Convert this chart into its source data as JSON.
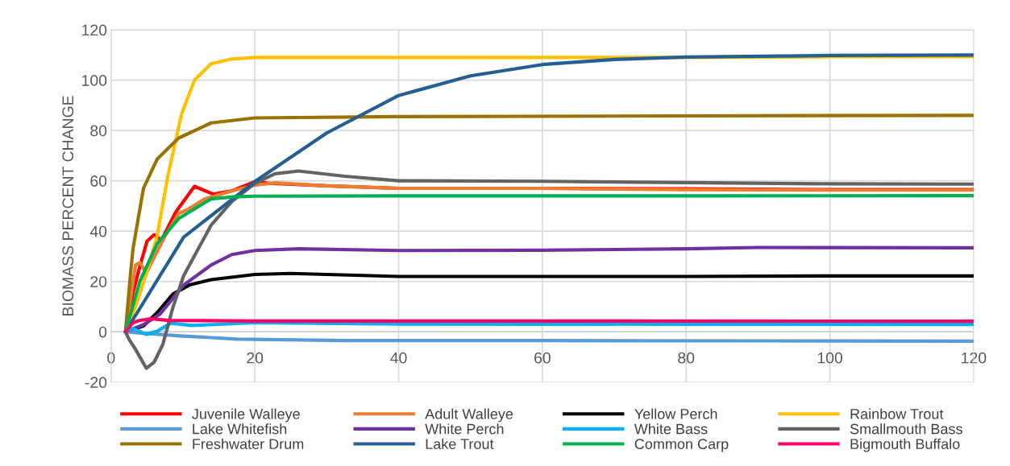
{
  "chart_data": {
    "type": "line",
    "ylabel": "BIOMASS PERCENT CHANGE",
    "xlim": [
      0,
      120
    ],
    "xticks": [
      0,
      20,
      40,
      60,
      80,
      100,
      120
    ],
    "ylim": [
      -20,
      120
    ],
    "yticks": [
      -20,
      0,
      20,
      40,
      60,
      80,
      100,
      120
    ],
    "grid": true,
    "legend": "bottom",
    "marker": "none",
    "line_style": "solid",
    "series": [
      {
        "name": "Juvenile Walleye",
        "color": "#ff0000",
        "x": [
          2,
          3,
          4,
          5,
          6,
          7,
          9,
          11.6,
          14.2,
          16.8,
          20,
          22,
          30,
          40,
          60,
          80,
          100,
          120
        ],
        "values": [
          0,
          15,
          26,
          36,
          38.6,
          36.5,
          47.6,
          57.8,
          54.7,
          56,
          59.7,
          59,
          58,
          57,
          57,
          56.8,
          56.5,
          56.5
        ]
      },
      {
        "name": "Adult Walleye",
        "color": "#ed7d31",
        "x": [
          2,
          3.4,
          4,
          4.9,
          7.5,
          9.4,
          10.9,
          13,
          16.8,
          20,
          22.8,
          30,
          40,
          60,
          80,
          100,
          120
        ],
        "values": [
          0,
          26.5,
          27.5,
          23.4,
          38,
          47,
          49,
          52.8,
          56,
          58.3,
          59.2,
          58,
          57,
          57,
          56.5,
          56.3,
          56.3
        ]
      },
      {
        "name": "Yellow Perch",
        "color": "#000000",
        "x": [
          2,
          4.5,
          6.4,
          8.6,
          10.9,
          13.9,
          20,
          25,
          40,
          60,
          80,
          100,
          120
        ],
        "values": [
          0,
          2.3,
          7.6,
          15,
          18.6,
          20.7,
          22.8,
          23.2,
          22,
          22,
          22,
          22.2,
          22.2
        ]
      },
      {
        "name": "Rainbow Trout",
        "color": "#ffc000",
        "x": [
          2,
          3,
          4,
          4.9,
          6.4,
          7.9,
          9.8,
          11.6,
          13.9,
          16.8,
          20,
          40,
          60,
          80,
          100,
          120
        ],
        "values": [
          0,
          7,
          15,
          23.4,
          38,
          62,
          86.5,
          100,
          106.5,
          108.4,
          109,
          109,
          109,
          109,
          109.3,
          109.3
        ]
      },
      {
        "name": "Lake Whitefish",
        "color": "#5b9bd5",
        "x": [
          2,
          4.5,
          10.1,
          17.6,
          32.5,
          60,
          90,
          120
        ],
        "values": [
          0,
          -0.6,
          -1.7,
          -2.9,
          -3.5,
          -3.5,
          -3.6,
          -3.7
        ]
      },
      {
        "name": "White Perch",
        "color": "#7030a0",
        "x": [
          2,
          4.5,
          6.8,
          10.1,
          13.9,
          16.8,
          20,
          26.1,
          40,
          60,
          80,
          90,
          120
        ],
        "values": [
          0,
          2.8,
          7,
          18.6,
          26.5,
          30.7,
          32.3,
          33,
          32.3,
          32.4,
          33,
          33.5,
          33.4
        ]
      },
      {
        "name": "White Bass",
        "color": "#00b0f0",
        "x": [
          2,
          3,
          4.9,
          6.4,
          8.3,
          11.2,
          20,
          40,
          80,
          120
        ],
        "values": [
          0,
          1.3,
          -1,
          0.2,
          3.4,
          2.5,
          3.6,
          3.1,
          3,
          2.9
        ]
      },
      {
        "name": "Smallmouth Bass",
        "color": "#636363",
        "x": [
          2,
          2.5,
          3.4,
          4.9,
          6,
          7.2,
          8.6,
          10.1,
          13.9,
          16.8,
          20,
          22.8,
          26.1,
          32.5,
          40,
          60,
          80,
          100,
          120
        ],
        "values": [
          0,
          -3,
          -7,
          -14.5,
          -12,
          -5,
          9.7,
          22.3,
          42.3,
          51.8,
          59,
          62.8,
          63.9,
          61.8,
          60,
          59.8,
          59.3,
          58.8,
          58.7
        ]
      },
      {
        "name": "Freshwater Drum",
        "color": "#997300",
        "x": [
          2,
          2.7,
          3.05,
          4.5,
          6.4,
          9.4,
          13.9,
          20,
          40,
          80,
          120
        ],
        "values": [
          0,
          23,
          33,
          57,
          68.6,
          77,
          83,
          85,
          85.5,
          85.8,
          86
        ]
      },
      {
        "name": "Lake Trout",
        "color": "#255e91",
        "x": [
          2,
          10.1,
          20,
          30,
          40,
          50,
          60,
          70,
          80,
          100,
          120
        ],
        "values": [
          0,
          37.6,
          59.7,
          79,
          93.9,
          101.7,
          106.2,
          108.2,
          109.2,
          109.8,
          110
        ]
      },
      {
        "name": "Common Carp",
        "color": "#00b050",
        "x": [
          2,
          4,
          6.4,
          9.4,
          13.9,
          17,
          20,
          40,
          80,
          120
        ],
        "values": [
          0,
          20,
          35,
          45,
          52.8,
          53.6,
          53.9,
          54,
          54,
          54.1
        ]
      },
      {
        "name": "Bigmouth Buffalo",
        "color": "#ff0066",
        "x": [
          2,
          3,
          3.8,
          5.5,
          8,
          20,
          60,
          120
        ],
        "values": [
          0,
          3.5,
          4.4,
          5.2,
          4.5,
          4.3,
          4.3,
          4.2
        ]
      }
    ]
  }
}
